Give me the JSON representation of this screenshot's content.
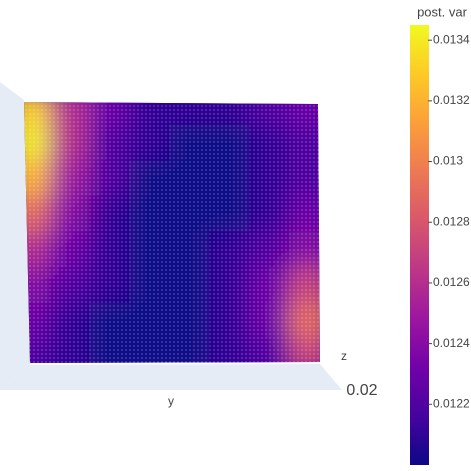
{
  "chart_data": {
    "type": "surface",
    "colorbar_title": "post. var",
    "colorscale": "plasma",
    "clim": [
      0.012,
      0.01345
    ],
    "cticks": [
      0.0122,
      0.0124,
      0.0126,
      0.0128,
      0.013,
      0.0132,
      0.0134
    ],
    "y_label": "y",
    "z_label": "z",
    "zticks": [
      0.02
    ],
    "values": [
      [
        0.0133,
        0.0126,
        0.0123,
        0.0121,
        0.0121,
        0.0121,
        0.0122,
        0.0123
      ],
      [
        0.0134,
        0.0126,
        0.0122,
        0.0121,
        0.012,
        0.012,
        0.0121,
        0.0122
      ],
      [
        0.0132,
        0.0125,
        0.0122,
        0.012,
        0.012,
        0.012,
        0.0121,
        0.0122
      ],
      [
        0.0129,
        0.0124,
        0.0121,
        0.012,
        0.012,
        0.012,
        0.0121,
        0.0123
      ],
      [
        0.0126,
        0.0123,
        0.0121,
        0.012,
        0.012,
        0.0121,
        0.0122,
        0.0124
      ],
      [
        0.0124,
        0.0122,
        0.0121,
        0.012,
        0.012,
        0.0121,
        0.0123,
        0.0127
      ],
      [
        0.0123,
        0.0121,
        0.012,
        0.012,
        0.012,
        0.0121,
        0.0123,
        0.0129
      ],
      [
        0.0122,
        0.0121,
        0.012,
        0.012,
        0.012,
        0.0121,
        0.0122,
        0.0127
      ]
    ]
  }
}
